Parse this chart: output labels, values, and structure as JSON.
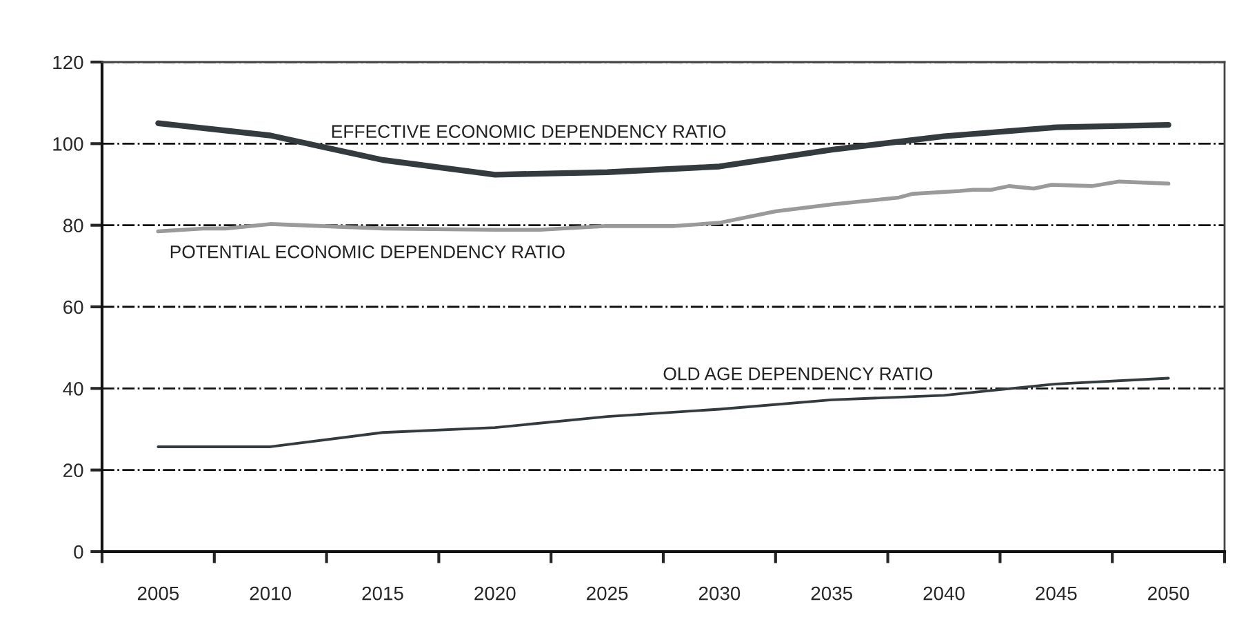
{
  "chart_data": {
    "type": "line",
    "xlim": [
      2002.5,
      2052.5
    ],
    "xticks": [
      {
        "value": 2002.5,
        "label": null
      },
      {
        "value": 2005,
        "label": "2005"
      },
      {
        "value": 2007.5,
        "label": null
      },
      {
        "value": 2010,
        "label": "2010"
      },
      {
        "value": 2012.5,
        "label": null
      },
      {
        "value": 2015,
        "label": "2015"
      },
      {
        "value": 2017.5,
        "label": null
      },
      {
        "value": 2020,
        "label": "2020"
      },
      {
        "value": 2022.5,
        "label": null
      },
      {
        "value": 2025,
        "label": "2025"
      },
      {
        "value": 2027.5,
        "label": null
      },
      {
        "value": 2030,
        "label": "2030"
      },
      {
        "value": 2032.5,
        "label": null
      },
      {
        "value": 2035,
        "label": "2035"
      },
      {
        "value": 2037.5,
        "label": null
      },
      {
        "value": 2040,
        "label": "2040"
      },
      {
        "value": 2042.5,
        "label": null
      },
      {
        "value": 2045,
        "label": "2045"
      },
      {
        "value": 2047.5,
        "label": null
      },
      {
        "value": 2050,
        "label": "2050"
      },
      {
        "value": 2052.5,
        "label": null
      }
    ],
    "ylim": [
      0,
      120
    ],
    "yticks": [
      0,
      20,
      40,
      60,
      80,
      100,
      120
    ],
    "grid": "y",
    "line_style": "solid",
    "marker": "none",
    "legend": false,
    "series": [
      {
        "name": "EFFECTIVE ECONOMIC DEPENDENCY RATIO",
        "color": "#333b3f",
        "x": [
          2005,
          2010,
          2015,
          2020,
          2025,
          2030,
          2035,
          2040,
          2045,
          2050
        ],
        "values": [
          105,
          102,
          96,
          92.4,
          93,
          94.4,
          98.5,
          101.8,
          104,
          104.6
        ]
      },
      {
        "name": "POTENTIAL ECONOMIC DEPENDENCY RATIO",
        "color": "#9a9a9a",
        "x": [
          2005,
          2007,
          2008,
          2010,
          2015,
          2020,
          2022,
          2025,
          2028,
          2030,
          2032.5,
          2035,
          2038,
          2038.6,
          2040.7,
          2041.3,
          2042.1,
          2042.9,
          2044,
          2044.8,
          2046.6,
          2047.8,
          2050
        ],
        "values": [
          78.5,
          79.2,
          79.2,
          80.3,
          79.2,
          78.9,
          78.9,
          79.8,
          79.8,
          80.6,
          83.4,
          85.1,
          86.8,
          87.7,
          88.4,
          88.7,
          88.7,
          89.6,
          89,
          89.9,
          89.6,
          90.7,
          90.2
        ]
      },
      {
        "name": "OLD AGE DEPENDENCY RATIO",
        "color": "#333b3f",
        "x": [
          2005,
          2010,
          2015,
          2020,
          2025,
          2030,
          2035,
          2040,
          2045,
          2050
        ],
        "values": [
          25.7,
          25.7,
          29.2,
          30.4,
          33.1,
          34.9,
          37.2,
          38.3,
          41.1,
          42.5
        ]
      }
    ]
  }
}
